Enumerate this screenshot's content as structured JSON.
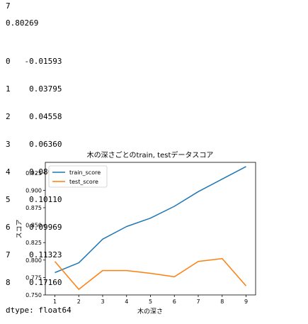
{
  "outputs": {
    "line1": "7",
    "line2": "0.80269",
    "series": [
      {
        "idx": "0",
        "val": "-0.01593"
      },
      {
        "idx": "1",
        "val": "0.03795"
      },
      {
        "idx": "2",
        "val": "0.04558"
      },
      {
        "idx": "3",
        "val": "0.06360"
      },
      {
        "idx": "4",
        "val": "0.08009"
      },
      {
        "idx": "5",
        "val": "0.10110"
      },
      {
        "idx": "6",
        "val": "0.09969"
      },
      {
        "idx": "7",
        "val": "0.11323"
      },
      {
        "idx": "8",
        "val": "0.17160"
      }
    ],
    "dtype": "dtype: float64"
  },
  "chart_data": {
    "type": "line",
    "title": "木の深さごとのtrain, testデータスコア",
    "xlabel": "木の深さ",
    "ylabel": "スコア",
    "x": [
      1,
      2,
      3,
      4,
      5,
      6,
      7,
      8,
      9
    ],
    "xlim": [
      0.6,
      9.4
    ],
    "ylim": [
      0.75,
      0.94
    ],
    "yticks": [
      "0.750",
      "0.775",
      "0.800",
      "0.825",
      "0.850",
      "0.875",
      "0.900",
      "0.925"
    ],
    "xticks": [
      "1",
      "2",
      "3",
      "4",
      "5",
      "6",
      "7",
      "8",
      "9"
    ],
    "legend": "upper-left",
    "series": [
      {
        "name": "train_score",
        "color": "#1f77b4",
        "values": [
          0.782,
          0.796,
          0.83,
          0.848,
          0.86,
          0.877,
          0.898,
          0.916,
          0.934
        ]
      },
      {
        "name": "test_score",
        "color": "#ff7f0e",
        "values": [
          0.798,
          0.758,
          0.785,
          0.785,
          0.781,
          0.776,
          0.798,
          0.802,
          0.763
        ]
      }
    ]
  }
}
